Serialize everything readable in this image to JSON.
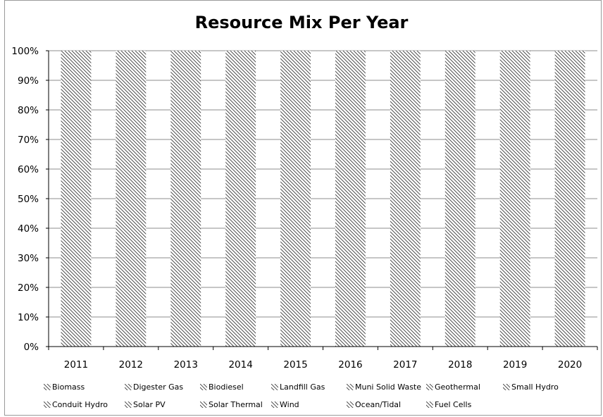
{
  "chart_data": {
    "type": "bar",
    "stacked": true,
    "title": "Resource Mix Per Year",
    "xlabel": "",
    "ylabel": "",
    "categories": [
      "2011",
      "2012",
      "2013",
      "2014",
      "2015",
      "2016",
      "2017",
      "2018",
      "2019",
      "2020"
    ],
    "yticks": [
      "0%",
      "10%",
      "20%",
      "30%",
      "40%",
      "50%",
      "60%",
      "70%",
      "80%",
      "90%",
      "100%"
    ],
    "ylim": [
      0,
      100
    ],
    "grid": true,
    "legend_position": "bottom",
    "fill": "diagonal-hatch",
    "series": [
      {
        "name": "Biomass"
      },
      {
        "name": "Digester Gas"
      },
      {
        "name": "Biodiesel"
      },
      {
        "name": "Landfill Gas"
      },
      {
        "name": "Muni Solid Waste"
      },
      {
        "name": "Geothermal"
      },
      {
        "name": "Small Hydro"
      },
      {
        "name": "Conduit Hydro"
      },
      {
        "name": "Solar PV"
      },
      {
        "name": "Solar Thermal"
      },
      {
        "name": "Wind"
      },
      {
        "name": "Ocean/Tidal"
      },
      {
        "name": "Fuel Cells"
      }
    ],
    "totals": [
      100,
      100,
      100,
      100,
      100,
      100,
      100,
      100,
      100,
      100
    ]
  }
}
